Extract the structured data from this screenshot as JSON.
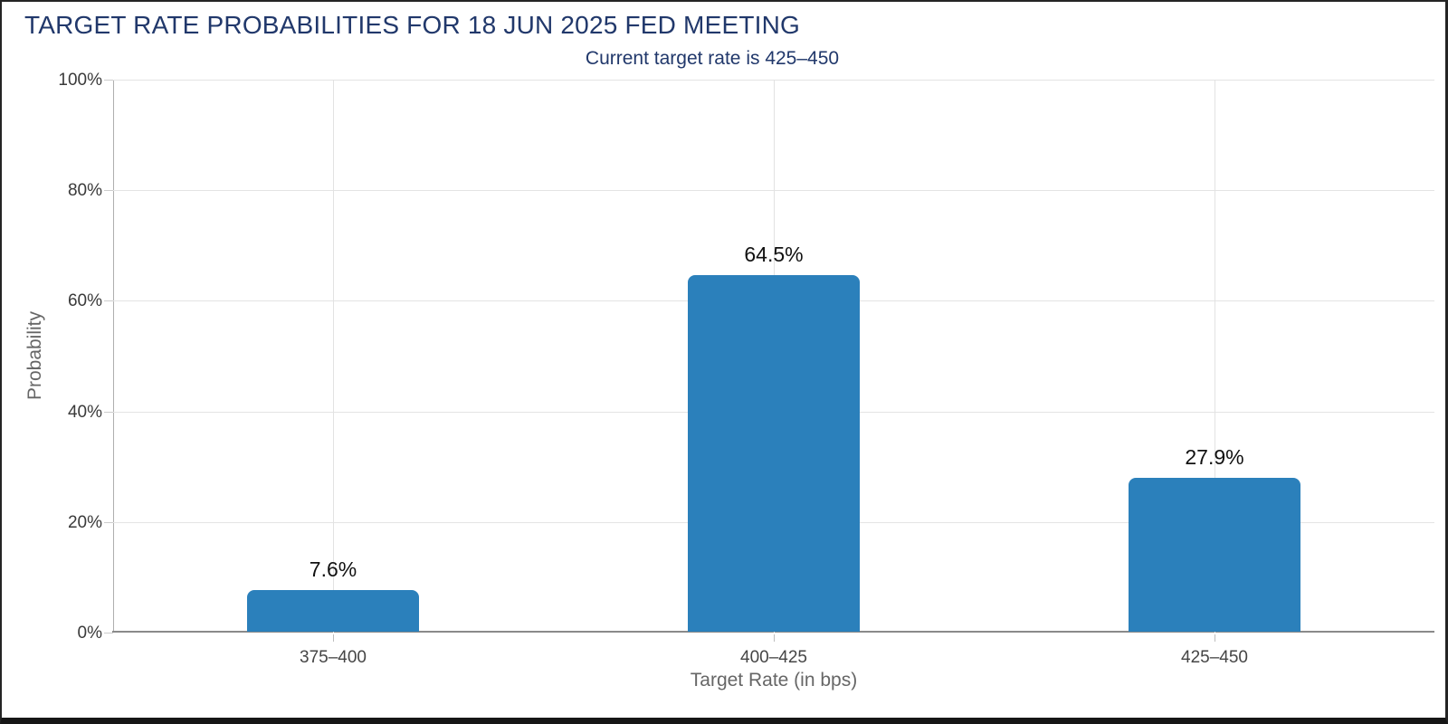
{
  "window": {
    "background_color": "#ffffff",
    "border_color": "#242424"
  },
  "colors": {
    "title_navy": "#21386b",
    "bar_blue": "#2b80bb",
    "gridline": "#e4e4e4",
    "axis_gray": "#666666",
    "tick_gray": "#3a3a3a"
  },
  "chart_data": {
    "type": "bar",
    "title": "TARGET RATE PROBABILITIES FOR 18 JUN 2025 FED MEETING",
    "subtitle": "Current target rate is 425–450",
    "categories": [
      "375–400",
      "400–425",
      "425–450"
    ],
    "values": [
      7.6,
      64.5,
      27.9
    ],
    "value_labels": [
      "7.6%",
      "64.5%",
      "27.9%"
    ],
    "xlabel": "Target Rate (in bps)",
    "ylabel": "Probability",
    "ylim": [
      0,
      100
    ],
    "yticks": [
      0,
      20,
      40,
      60,
      80,
      100
    ],
    "ytick_labels": [
      "0%",
      "20%",
      "40%",
      "60%",
      "80%",
      "100%"
    ],
    "bar_color": "#2b80bb",
    "grid": "on",
    "legend": "none"
  }
}
